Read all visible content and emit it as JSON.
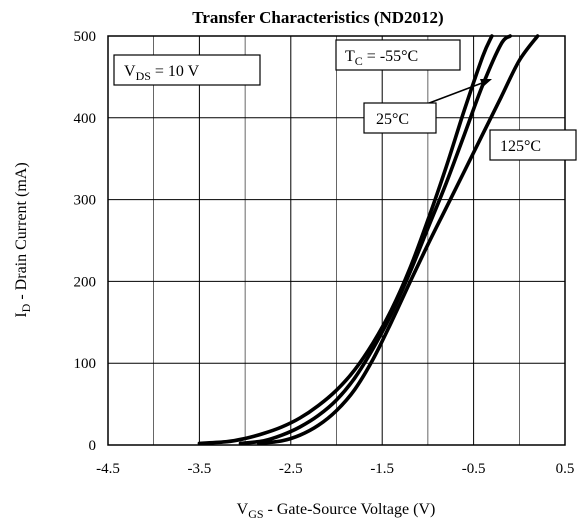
{
  "chart_data": {
    "type": "line",
    "title": "Transfer Characteristics (ND2012)",
    "xlabel": {
      "main": "V",
      "sub": "GS",
      "rest": " - Gate-Source Voltage (V)"
    },
    "ylabel": {
      "main": "I",
      "sub": "D",
      "rest": " - Drain Current (mA)"
    },
    "xlim": [
      -4.5,
      0.5
    ],
    "ylim": [
      0,
      500
    ],
    "xticks": [
      "-4.5",
      "-3.5",
      "-2.5",
      "-1.5",
      "-0.5",
      "0.5"
    ],
    "yticks": [
      "0",
      "100",
      "200",
      "300",
      "400",
      "500"
    ],
    "xtick_values": [
      -4.5,
      -3.5,
      -2.5,
      -1.5,
      -0.5,
      0.5
    ],
    "ytick_values": [
      0,
      100,
      200,
      300,
      400,
      500
    ],
    "minor_xgrid": [
      -4.0,
      -3.0,
      -2.0,
      -1.0,
      0.0
    ],
    "grid": true,
    "series": [
      {
        "name": "T_C = -55°C",
        "x": [
          -3.5,
          -3.2,
          -3.0,
          -2.8,
          -2.6,
          -2.4,
          -2.2,
          -2.0,
          -1.8,
          -1.6,
          -1.4,
          -1.2,
          -1.0,
          -0.8,
          -0.6,
          -0.4,
          -0.3
        ],
        "y": [
          2,
          4,
          8,
          14,
          22,
          33,
          48,
          67,
          92,
          125,
          165,
          215,
          275,
          340,
          410,
          475,
          500
        ]
      },
      {
        "name": "25°C",
        "x": [
          -3.05,
          -2.8,
          -2.6,
          -2.4,
          -2.2,
          -2.0,
          -1.8,
          -1.6,
          -1.4,
          -1.2,
          -1.0,
          -0.8,
          -0.6,
          -0.4,
          -0.2,
          -0.1
        ],
        "y": [
          2,
          5,
          12,
          22,
          36,
          55,
          82,
          118,
          160,
          210,
          265,
          320,
          380,
          440,
          490,
          500
        ]
      },
      {
        "name": "125°C",
        "x": [
          -2.85,
          -2.6,
          -2.4,
          -2.2,
          -2.0,
          -1.8,
          -1.6,
          -1.4,
          -1.2,
          -1.0,
          -0.8,
          -0.6,
          -0.4,
          -0.2,
          0.0,
          0.2
        ],
        "y": [
          2,
          5,
          12,
          24,
          42,
          68,
          105,
          150,
          198,
          245,
          290,
          335,
          380,
          425,
          470,
          500
        ]
      }
    ],
    "annotations": {
      "vds": {
        "main": "V",
        "sub": "DS",
        "rest": " = 10 V"
      },
      "tc": {
        "main": "T",
        "sub": "C",
        "rest": " = -55°C"
      },
      "t25": "25°C",
      "t125": "125°C"
    }
  }
}
